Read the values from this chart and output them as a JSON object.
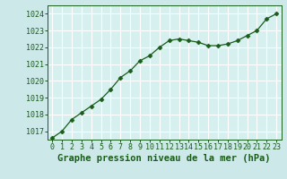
{
  "x": [
    0,
    1,
    2,
    3,
    4,
    5,
    6,
    7,
    8,
    9,
    10,
    11,
    12,
    13,
    14,
    15,
    16,
    17,
    18,
    19,
    20,
    21,
    22,
    23
  ],
  "y": [
    1016.6,
    1017.0,
    1017.7,
    1018.1,
    1018.5,
    1018.9,
    1019.5,
    1020.2,
    1020.6,
    1021.2,
    1021.5,
    1022.0,
    1022.4,
    1022.5,
    1022.4,
    1022.3,
    1022.1,
    1022.1,
    1022.2,
    1022.4,
    1022.7,
    1023.0,
    1023.7,
    1024.0
  ],
  "ylim": [
    1016.5,
    1024.5
  ],
  "yticks": [
    1017,
    1018,
    1019,
    1020,
    1021,
    1022,
    1023,
    1024
  ],
  "xticks": [
    0,
    1,
    2,
    3,
    4,
    5,
    6,
    7,
    8,
    9,
    10,
    11,
    12,
    13,
    14,
    15,
    16,
    17,
    18,
    19,
    20,
    21,
    22,
    23
  ],
  "xlabel": "Graphe pression niveau de la mer (hPa)",
  "line_color": "#1a5c1a",
  "marker": "D",
  "marker_size": 2.5,
  "bg_color": "#cce8e8",
  "plot_bg_color": "#d6f0f0",
  "grid_color": "#ffffff",
  "text_color": "#1a5c1a",
  "tick_fontsize": 6.0,
  "xlabel_fontsize": 7.5,
  "line_width": 0.9
}
